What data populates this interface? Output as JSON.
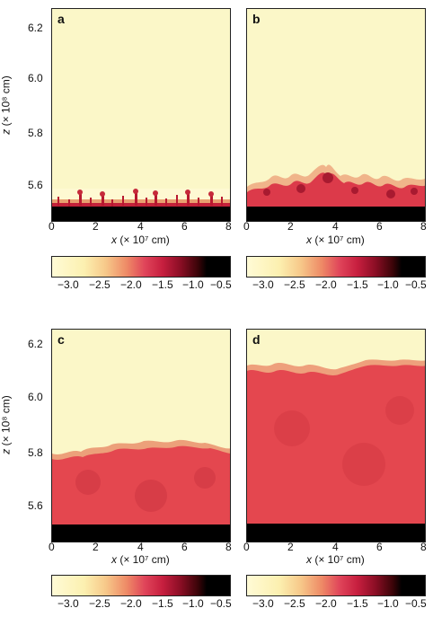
{
  "figure": {
    "panels": [
      {
        "label": "a",
        "interface_z": 5.52
      },
      {
        "label": "b",
        "interface_z": 5.59
      },
      {
        "label": "c",
        "interface_z": 5.78
      },
      {
        "label": "d",
        "interface_z": 6.11
      }
    ],
    "x_axis": {
      "ticks": [
        "0",
        "2",
        "4",
        "6",
        "8"
      ],
      "label_var": "x",
      "label_unit": "(× 10⁷ cm)"
    },
    "y_axis": {
      "ticks": [
        "6.2",
        "6.0",
        "5.8",
        "5.6"
      ],
      "label_var": "z",
      "label_unit": "(× 10⁸ cm)"
    },
    "colorbar": {
      "ticks": [
        "−3.0",
        "−2.5",
        "−2.0",
        "−1.5",
        "−1.0",
        "−0.5"
      ]
    },
    "colors": {
      "background": "#fbf7c8",
      "mixed": "#e4474f",
      "bottom": "#000000",
      "spike": "#b8182f"
    }
  }
}
